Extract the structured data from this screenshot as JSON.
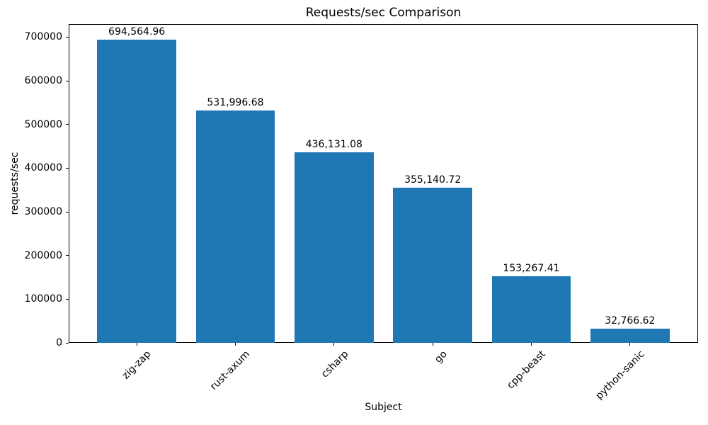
{
  "chart_data": {
    "type": "bar",
    "title": "Requests/sec Comparison",
    "xlabel": "Subject",
    "ylabel": "requests/sec",
    "categories": [
      "zig-zap",
      "rust-axum",
      "csharp",
      "go",
      "cpp-beast",
      "python-sanic"
    ],
    "values": [
      694564.96,
      531996.68,
      436131.08,
      355140.72,
      153267.41,
      32766.62
    ],
    "value_labels": [
      "694,564.96",
      "531,996.68",
      "436,131.08",
      "355,140.72",
      "153,267.41",
      "32,766.62"
    ],
    "bar_color": "#1f77b4",
    "axis_color": "#000000",
    "background_color": "#ffffff",
    "ylim": [
      0,
      730000
    ],
    "yticks": [
      0,
      100000,
      200000,
      300000,
      400000,
      500000,
      600000,
      700000
    ],
    "ytick_labels": [
      "0",
      "100000",
      "200000",
      "300000",
      "400000",
      "500000",
      "600000",
      "700000"
    ],
    "grid": false,
    "legend": null,
    "bar_width_fraction": 0.8,
    "x_tick_rotation_deg": 45
  }
}
